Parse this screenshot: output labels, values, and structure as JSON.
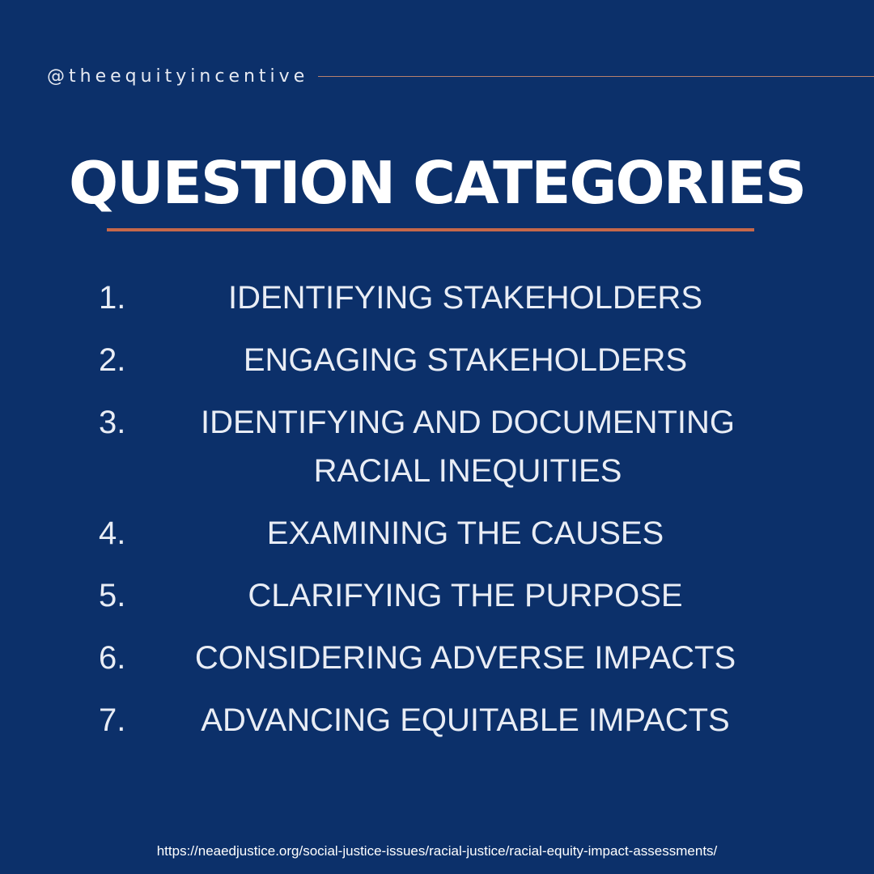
{
  "header": {
    "handle": "@theequityincentive"
  },
  "title": "QUESTION CATEGORIES",
  "categories": [
    {
      "number": "1.",
      "label": "IDENTIFYING STAKEHOLDERS"
    },
    {
      "number": "2.",
      "label": "ENGAGING STAKEHOLDERS"
    },
    {
      "number": "3.",
      "label": "IDENTIFYING AND DOCUMENTING RACIAL INEQUITIES"
    },
    {
      "number": "4.",
      "label": "EXAMINING THE CAUSES"
    },
    {
      "number": "5.",
      "label": "CLARIFYING THE PURPOSE"
    },
    {
      "number": "6.",
      "label": "CONSIDERING ADVERSE IMPACTS"
    },
    {
      "number": "7.",
      "label": "ADVANCING EQUITABLE IMPACTS"
    }
  ],
  "footer": {
    "source_url": "https://neaedjustice.org/social-justice-issues/racial-justice/racial-equity-impact-assessments/"
  },
  "colors": {
    "background": "#0c306a",
    "accent": "#c7684a",
    "text": "#ffffff"
  }
}
